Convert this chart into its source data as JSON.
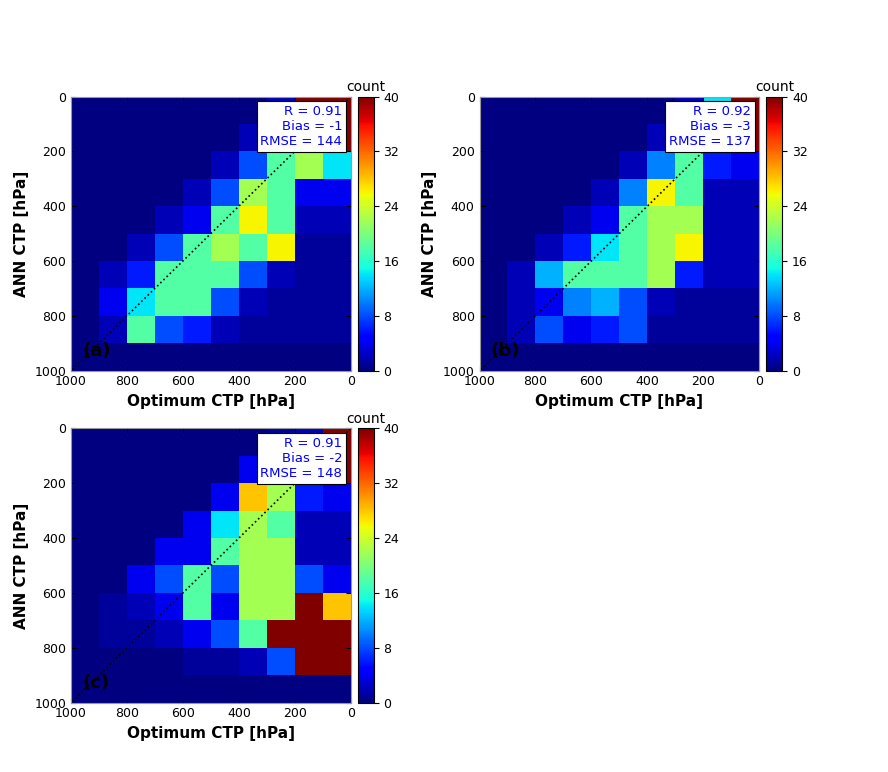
{
  "panels": [
    {
      "label": "(a)",
      "R": "0.91",
      "Bias": "-1",
      "RMSE": "144",
      "data": [
        [
          0,
          0,
          0,
          0,
          0,
          0,
          0,
          2,
          40,
          40
        ],
        [
          0,
          0,
          0,
          0,
          0,
          0,
          2,
          14,
          40,
          40
        ],
        [
          0,
          0,
          0,
          0,
          0,
          2,
          8,
          18,
          22,
          14
        ],
        [
          0,
          0,
          0,
          0,
          2,
          8,
          22,
          18,
          4,
          4
        ],
        [
          0,
          0,
          0,
          2,
          4,
          18,
          26,
          18,
          2,
          2
        ],
        [
          0,
          0,
          2,
          8,
          18,
          22,
          18,
          26,
          1,
          1
        ],
        [
          0,
          2,
          6,
          18,
          18,
          18,
          8,
          2,
          1,
          1
        ],
        [
          0,
          4,
          14,
          18,
          18,
          8,
          2,
          1,
          1,
          1
        ],
        [
          0,
          2,
          18,
          8,
          6,
          2,
          1,
          1,
          1,
          1
        ],
        [
          0,
          0,
          0,
          0,
          0,
          0,
          0,
          0,
          0,
          0
        ]
      ]
    },
    {
      "label": "(b)",
      "R": "0.92",
      "Bias": "-3",
      "RMSE": "137",
      "data": [
        [
          0,
          0,
          0,
          0,
          0,
          0,
          0,
          2,
          14,
          40
        ],
        [
          0,
          0,
          0,
          0,
          0,
          0,
          2,
          8,
          40,
          40
        ],
        [
          0,
          0,
          0,
          0,
          0,
          2,
          10,
          18,
          6,
          4
        ],
        [
          0,
          0,
          0,
          0,
          2,
          10,
          26,
          18,
          2,
          2
        ],
        [
          0,
          0,
          0,
          2,
          4,
          18,
          22,
          22,
          2,
          2
        ],
        [
          0,
          0,
          2,
          6,
          14,
          18,
          22,
          26,
          2,
          2
        ],
        [
          0,
          2,
          12,
          18,
          18,
          18,
          22,
          6,
          2,
          2
        ],
        [
          0,
          2,
          4,
          10,
          12,
          8,
          2,
          1,
          1,
          1
        ],
        [
          0,
          2,
          8,
          4,
          6,
          8,
          1,
          1,
          1,
          1
        ],
        [
          0,
          0,
          0,
          0,
          0,
          0,
          0,
          0,
          0,
          0
        ]
      ]
    },
    {
      "label": "(c)",
      "R": "0.91",
      "Bias": "-2",
      "RMSE": "148",
      "data": [
        [
          0,
          0,
          0,
          0,
          0,
          0,
          0,
          1,
          2,
          40
        ],
        [
          0,
          0,
          0,
          0,
          0,
          0,
          4,
          14,
          40,
          40
        ],
        [
          0,
          0,
          0,
          0,
          0,
          4,
          28,
          22,
          6,
          4
        ],
        [
          0,
          0,
          0,
          0,
          4,
          14,
          22,
          18,
          2,
          2
        ],
        [
          0,
          0,
          0,
          4,
          4,
          18,
          22,
          22,
          2,
          2
        ],
        [
          0,
          0,
          4,
          8,
          18,
          8,
          22,
          22,
          8,
          4
        ],
        [
          0,
          1,
          2,
          4,
          18,
          4,
          22,
          22,
          40,
          28
        ],
        [
          0,
          1,
          1,
          2,
          4,
          8,
          18,
          40,
          40,
          40
        ],
        [
          0,
          0,
          0,
          0,
          1,
          1,
          2,
          8,
          40,
          40
        ],
        [
          0,
          0,
          0,
          0,
          0,
          0,
          0,
          0,
          0,
          0
        ]
      ]
    }
  ],
  "cmap_name": "jet",
  "vmin": 0,
  "vmax": 40,
  "colorbar_ticks": [
    0,
    8,
    16,
    24,
    32,
    40
  ],
  "colorbar_label": "count",
  "xlabel": "Optimum CTP [hPa]",
  "ylabel": "ANN CTP [hPa]",
  "xticks": [
    1000,
    800,
    600,
    400,
    200,
    0
  ],
  "yticks": [
    0,
    200,
    400,
    600,
    800,
    1000
  ],
  "stats_color": "blue",
  "stats_fontsize": 9.5,
  "label_fontsize": 13,
  "axis_fontsize": 11,
  "tick_fontsize": 9,
  "figure_bg": "white"
}
